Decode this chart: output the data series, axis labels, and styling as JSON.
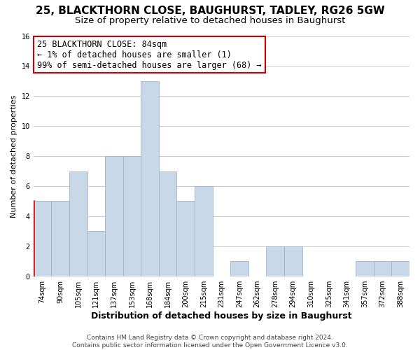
{
  "title": "25, BLACKTHORN CLOSE, BAUGHURST, TADLEY, RG26 5GW",
  "subtitle": "Size of property relative to detached houses in Baughurst",
  "xlabel": "Distribution of detached houses by size in Baughurst",
  "ylabel": "Number of detached properties",
  "footer_line1": "Contains HM Land Registry data © Crown copyright and database right 2024.",
  "footer_line2": "Contains public sector information licensed under the Open Government Licence v3.0.",
  "annotation_title": "25 BLACKTHORN CLOSE: 84sqm",
  "annotation_line1": "← 1% of detached houses are smaller (1)",
  "annotation_line2": "99% of semi-detached houses are larger (68) →",
  "bar_labels": [
    "74sqm",
    "90sqm",
    "105sqm",
    "121sqm",
    "137sqm",
    "153sqm",
    "168sqm",
    "184sqm",
    "200sqm",
    "215sqm",
    "231sqm",
    "247sqm",
    "262sqm",
    "278sqm",
    "294sqm",
    "310sqm",
    "325sqm",
    "341sqm",
    "357sqm",
    "372sqm",
    "388sqm"
  ],
  "bar_values": [
    5,
    5,
    7,
    3,
    8,
    8,
    13,
    7,
    5,
    6,
    0,
    1,
    0,
    2,
    2,
    0,
    0,
    0,
    1,
    1,
    1
  ],
  "bar_color": "#c8d8e8",
  "bar_edge_color": "#a0b4c8",
  "highlight_color": "#cc0000",
  "ylim": [
    0,
    16
  ],
  "yticks": [
    0,
    2,
    4,
    6,
    8,
    10,
    12,
    14,
    16
  ],
  "background_color": "#ffffff",
  "grid_color": "#c8c8d8",
  "annotation_box_color": "#ffffff",
  "annotation_box_edge": "#cc0000",
  "title_fontsize": 11,
  "subtitle_fontsize": 9.5,
  "xlabel_fontsize": 9,
  "ylabel_fontsize": 8,
  "tick_fontsize": 7,
  "footer_fontsize": 6.5,
  "annotation_fontsize": 8.5
}
